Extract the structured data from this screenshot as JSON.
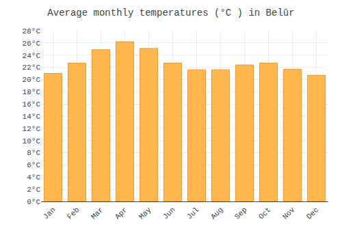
{
  "chart_data": {
    "type": "bar",
    "title": "Average monthly temperatures (°C ) in Belūr",
    "categories": [
      "Jan",
      "Feb",
      "Mar",
      "Apr",
      "May",
      "Jun",
      "Jul",
      "Aug",
      "Sep",
      "Oct",
      "Nov",
      "Dec"
    ],
    "values": [
      21.0,
      22.7,
      24.9,
      26.2,
      25.1,
      22.7,
      21.6,
      21.6,
      22.4,
      22.7,
      21.7,
      20.7
    ],
    "color": "#FFB74D",
    "ylim": [
      0,
      28
    ],
    "yticks": [
      {
        "value": 0,
        "label": "0°C"
      },
      {
        "value": 2,
        "label": "2°C"
      },
      {
        "value": 4,
        "label": "4°C"
      },
      {
        "value": 6,
        "label": "6°C"
      },
      {
        "value": 8,
        "label": "8°C"
      },
      {
        "value": 10,
        "label": "10°C"
      },
      {
        "value": 12,
        "label": "12°C"
      },
      {
        "value": 14,
        "label": "14°C"
      },
      {
        "value": 16,
        "label": "16°C"
      },
      {
        "value": 18,
        "label": "18°C"
      },
      {
        "value": 20,
        "label": "20°C"
      },
      {
        "value": 22,
        "label": "22°C"
      },
      {
        "value": 24,
        "label": "24°C"
      },
      {
        "value": 26,
        "label": "26°C"
      },
      {
        "value": 28,
        "label": "28°C"
      }
    ],
    "grid": true
  }
}
